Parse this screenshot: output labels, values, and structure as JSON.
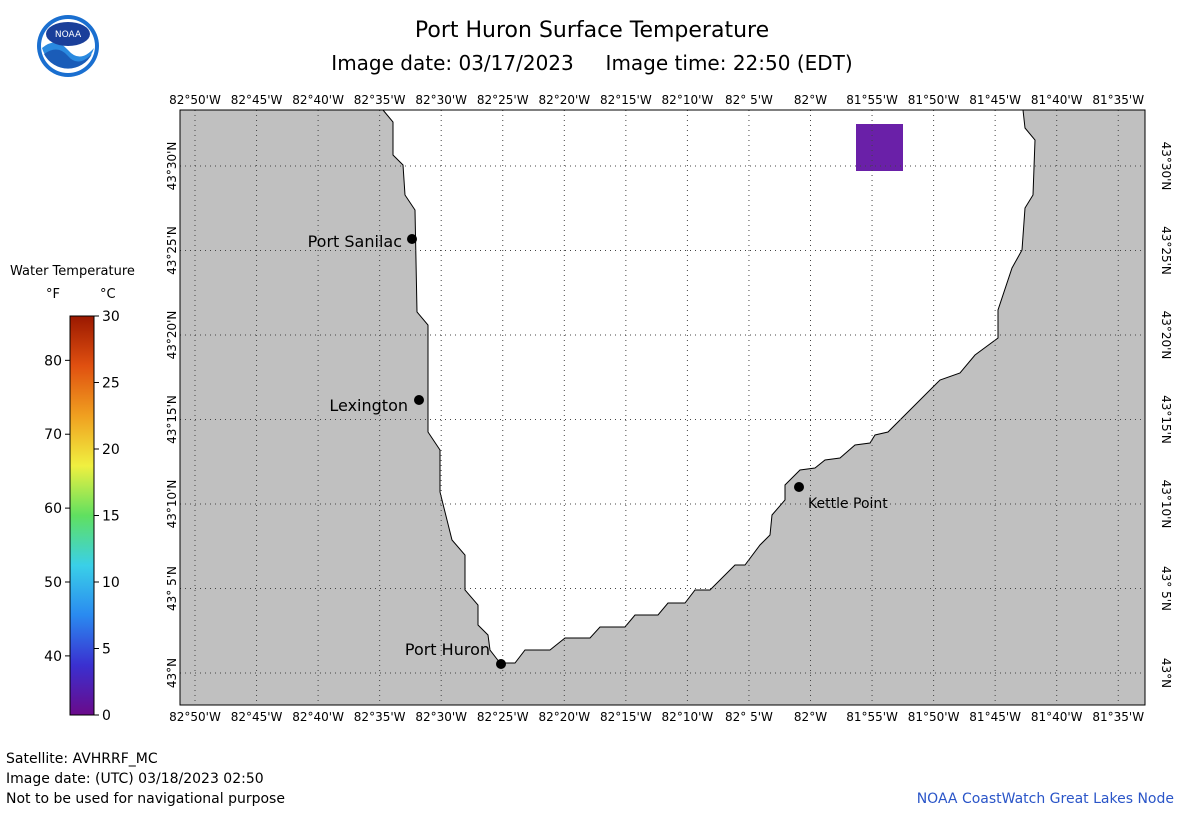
{
  "header": {
    "title": "Port Huron Surface Temperature",
    "subtitle": "Image date: 03/17/2023     Image time: 22:50 (EDT)"
  },
  "logo": {
    "icon": "noaa-logo-icon",
    "text": "NOAA"
  },
  "legend": {
    "title": "Water Temperature",
    "unit_f": "°F",
    "unit_c": "°C",
    "f_ticks": [
      40,
      50,
      60,
      70,
      80
    ],
    "c_ticks": [
      0,
      5,
      10,
      15,
      20,
      25,
      30
    ],
    "range_c": [
      0,
      30
    ],
    "gradient": [
      "#6a0a8a",
      "#3a30d0",
      "#2a8af0",
      "#3ad0e8",
      "#60e060",
      "#f0f040",
      "#f0a020",
      "#e05010",
      "#9a1800"
    ]
  },
  "map": {
    "lon_labels": [
      "82°50'W",
      "82°45'W",
      "82°40'W",
      "82°35'W",
      "82°30'W",
      "82°25'W",
      "82°20'W",
      "82°15'W",
      "82°10'W",
      "82° 5'W",
      "82°W",
      "81°55'W",
      "81°50'W",
      "81°45'W",
      "81°40'W",
      "81°35'W"
    ],
    "lat_labels": [
      "43°N",
      "43° 5'N",
      "43°10'N",
      "43°15'N",
      "43°20'N",
      "43°25'N",
      "43°30'N"
    ],
    "colors": {
      "land": "#c0c0c0",
      "water": "#ffffff",
      "grid": "#444444",
      "sst_patch": "#6a20a8"
    },
    "places": [
      {
        "name": "Port Sanilac",
        "label": "Port Sanilac"
      },
      {
        "name": "Lexington",
        "label": "Lexington"
      },
      {
        "name": "Kettle Point",
        "label": "Kettle Point"
      },
      {
        "name": "Port Huron",
        "label": "Port Huron"
      }
    ]
  },
  "footer": {
    "satellite": "Satellite: AVHRRF_MC",
    "utc_date": "Image date: (UTC) 03/18/2023  02:50",
    "disclaimer": "Not to be used for navigational purpose",
    "credit": "NOAA CoastWatch Great Lakes Node"
  }
}
